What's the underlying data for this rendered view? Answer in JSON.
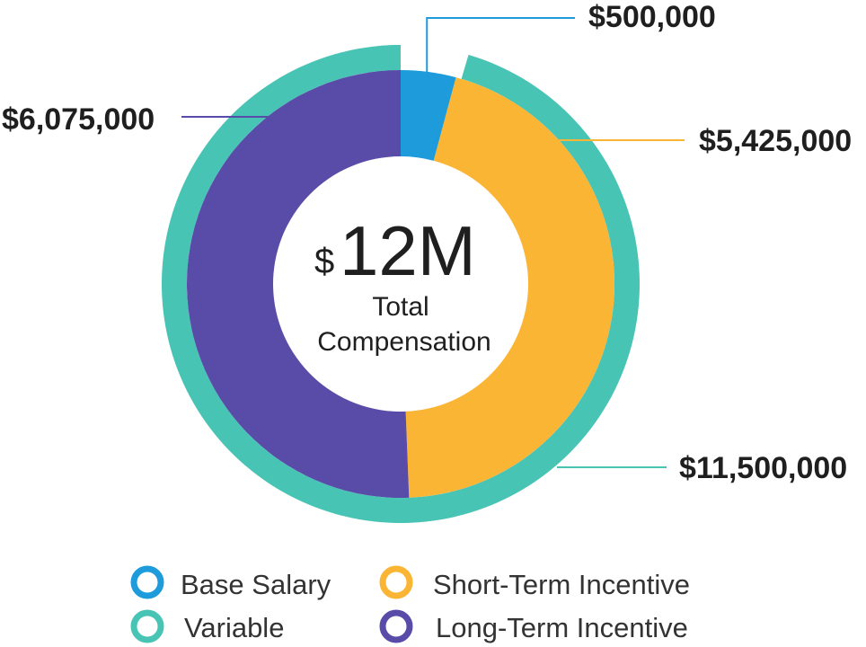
{
  "chart_data": {
    "type": "pie",
    "rings": [
      {
        "ring": "outer",
        "slices": [
          {
            "name": "Variable",
            "value": 11500000,
            "label": "$11,500,000",
            "color": "#48C4B5"
          },
          {
            "name": "Base Salary",
            "value": 500000,
            "label": "$500,000",
            "color": "#48C4B5",
            "gap": true
          }
        ]
      },
      {
        "ring": "inner",
        "slices": [
          {
            "name": "Base Salary",
            "value": 500000,
            "label": "$500,000",
            "color": "#1E9BDB"
          },
          {
            "name": "Short-Term Incentive",
            "value": 5425000,
            "label": "$5,425,000",
            "color": "#FBB535"
          },
          {
            "name": "Long-Term Incentive",
            "value": 6075000,
            "label": "$6,075,000",
            "color": "#594BA8"
          }
        ]
      }
    ],
    "total": 12000000,
    "center": {
      "currency": "$",
      "value": "12M",
      "caption_line1": "Total",
      "caption_line2": "Compensation"
    },
    "legend": [
      {
        "label": "Base Salary",
        "color": "#1E9BDB"
      },
      {
        "label": "Short-Term Incentive",
        "color": "#FBB535"
      },
      {
        "label": "Variable",
        "color": "#48C4B5"
      },
      {
        "label": "Long-Term Incentive",
        "color": "#594BA8"
      }
    ],
    "legend_position": "bottom"
  }
}
